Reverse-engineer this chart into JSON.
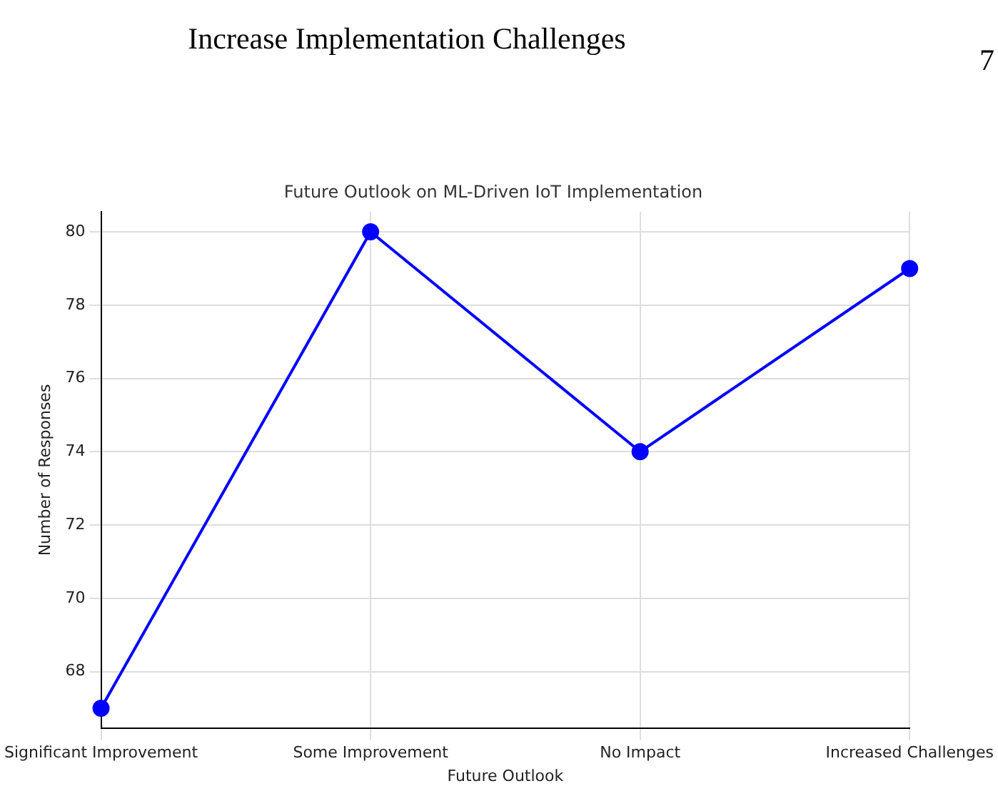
{
  "chart_data": {
    "type": "line",
    "title": "Future Outlook on ML-Driven IoT Implementation",
    "xlabel": "Future Outlook",
    "ylabel": "Number of Responses",
    "categories": [
      "Significant Improvement",
      "Some Improvement",
      "No Impact",
      "Increased Challenges"
    ],
    "series": [
      {
        "color": "#0000ff",
        "values": [
          67,
          80,
          74,
          79
        ]
      }
    ],
    "ylim": [
      66.45,
      80.55
    ],
    "yticks": [
      68,
      70,
      72,
      74,
      76,
      78,
      80
    ],
    "grid": true,
    "marker": "circle",
    "legend": false,
    "annotations": [
      "Increase Implementation Challenges",
      "7"
    ]
  }
}
